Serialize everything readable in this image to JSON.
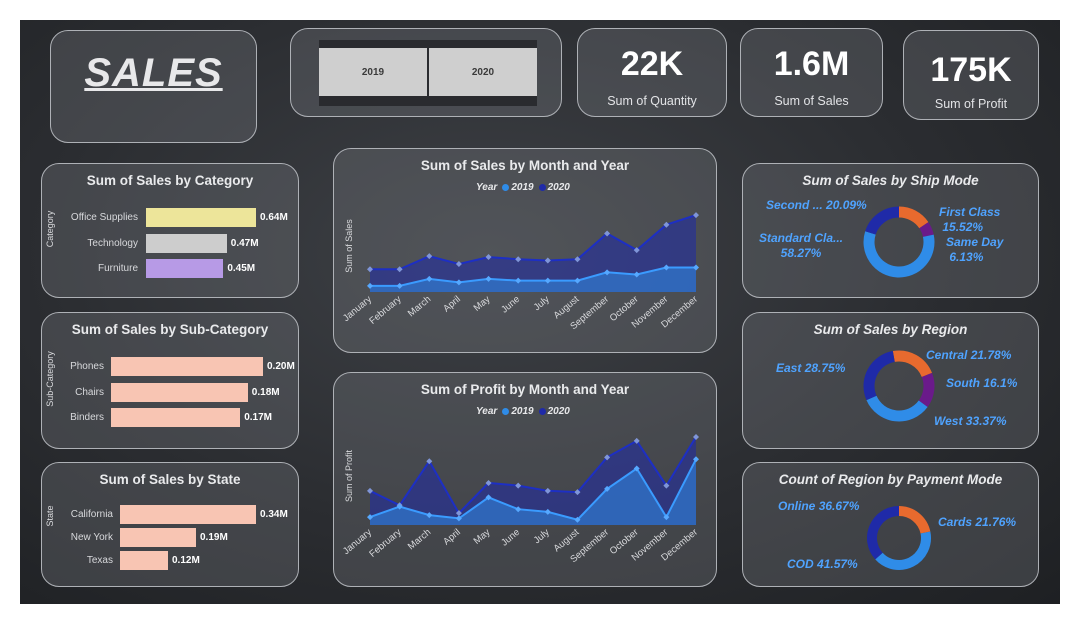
{
  "header": {
    "logo": "SALES",
    "years": [
      "2019",
      "2020"
    ]
  },
  "kpis": [
    {
      "value": "22K",
      "label": "Sum of Quantity"
    },
    {
      "value": "1.6M",
      "label": "Sum of Sales"
    },
    {
      "value": "175K",
      "label": "Sum of Profit"
    }
  ],
  "colors": {
    "y2019": "#2f8ce8",
    "y2020": "#1f2aa8",
    "lavender": "#b79ae6",
    "yellow": "#ede59a",
    "gray": "#cdcdcd",
    "peach": "#f8c5b3",
    "orange": "#e86a2e",
    "purple": "#6a1a8a"
  },
  "chart_data": [
    {
      "id": "category",
      "type": "bar",
      "orientation": "horizontal",
      "title": "Sum of Sales by Category",
      "ylabel": "Category",
      "categories": [
        "Office Supplies",
        "Technology",
        "Furniture"
      ],
      "values": [
        0.64,
        0.47,
        0.45
      ],
      "labels": [
        "0.64M",
        "0.47M",
        "0.45M"
      ],
      "xlim": [
        0,
        0.64
      ]
    },
    {
      "id": "subcategory",
      "type": "bar",
      "orientation": "horizontal",
      "title": "Sum of Sales by Sub-Category",
      "ylabel": "Sub-Category",
      "categories": [
        "Phones",
        "Chairs",
        "Binders"
      ],
      "values": [
        0.2,
        0.18,
        0.17
      ],
      "labels": [
        "0.20M",
        "0.18M",
        "0.17M"
      ],
      "xlim": [
        0,
        0.2
      ]
    },
    {
      "id": "state",
      "type": "bar",
      "orientation": "horizontal",
      "title": "Sum of Sales by State",
      "ylabel": "State",
      "categories": [
        "California",
        "New York",
        "Texas"
      ],
      "values": [
        0.34,
        0.19,
        0.12
      ],
      "labels": [
        "0.34M",
        "0.19M",
        "0.12M"
      ],
      "xlim": [
        0,
        0.34
      ]
    },
    {
      "id": "sales_month",
      "type": "area",
      "title": "Sum of Sales by Month and Year",
      "ylabel": "Sum of Sales",
      "legend_title": "Year",
      "categories": [
        "January",
        "February",
        "March",
        "April",
        "May",
        "June",
        "July",
        "August",
        "September",
        "October",
        "November",
        "December"
      ],
      "series": [
        {
          "name": "2019",
          "values": [
            14,
            14,
            30,
            22,
            30,
            26,
            26,
            26,
            45,
            40,
            56,
            56
          ]
        },
        {
          "name": "2020",
          "values": [
            52,
            52,
            82,
            64,
            80,
            75,
            72,
            75,
            134,
            96,
            154,
            176
          ]
        }
      ],
      "ylim": [
        0,
        190
      ]
    },
    {
      "id": "profit_month",
      "type": "area",
      "title": "Sum of Profit by Month and Year",
      "ylabel": "Sum of Profit",
      "legend_title": "Year",
      "categories": [
        "January",
        "February",
        "March",
        "April",
        "May",
        "June",
        "July",
        "August",
        "September",
        "October",
        "November",
        "December"
      ],
      "series": [
        {
          "name": "2019",
          "values": [
            12,
            28,
            15,
            10,
            42,
            24,
            20,
            8,
            55,
            86,
            12,
            100
          ]
        },
        {
          "name": "2020",
          "values": [
            52,
            30,
            97,
            18,
            64,
            60,
            52,
            50,
            103,
            128,
            60,
            134
          ]
        }
      ],
      "ylim": [
        0,
        140
      ]
    },
    {
      "id": "ship_mode",
      "type": "pie",
      "donut": true,
      "title": "Sum of Sales by Ship Mode",
      "slices": [
        {
          "name": "Standard Cla...",
          "value": 58.27,
          "pct": "58.27%"
        },
        {
          "name": "Second ...",
          "value": 20.09,
          "pct": "20.09%"
        },
        {
          "name": "First Class",
          "value": 15.52,
          "pct": "15.52%"
        },
        {
          "name": "Same Day",
          "value": 6.13,
          "pct": "6.13%"
        }
      ]
    },
    {
      "id": "region",
      "type": "pie",
      "donut": true,
      "title": "Sum of Sales by Region",
      "slices": [
        {
          "name": "West",
          "value": 33.37,
          "pct": "33.37%"
        },
        {
          "name": "East",
          "value": 28.75,
          "pct": "28.75%"
        },
        {
          "name": "Central",
          "value": 21.78,
          "pct": "21.78%"
        },
        {
          "name": "South",
          "value": 16.1,
          "pct": "16.1%"
        }
      ]
    },
    {
      "id": "payment",
      "type": "pie",
      "donut": true,
      "title": "Count of Region by Payment Mode",
      "slices": [
        {
          "name": "COD",
          "value": 41.57,
          "pct": "41.57%"
        },
        {
          "name": "Online",
          "value": 36.67,
          "pct": "36.67%"
        },
        {
          "name": "Cards",
          "value": 21.76,
          "pct": "21.76%"
        }
      ]
    }
  ]
}
